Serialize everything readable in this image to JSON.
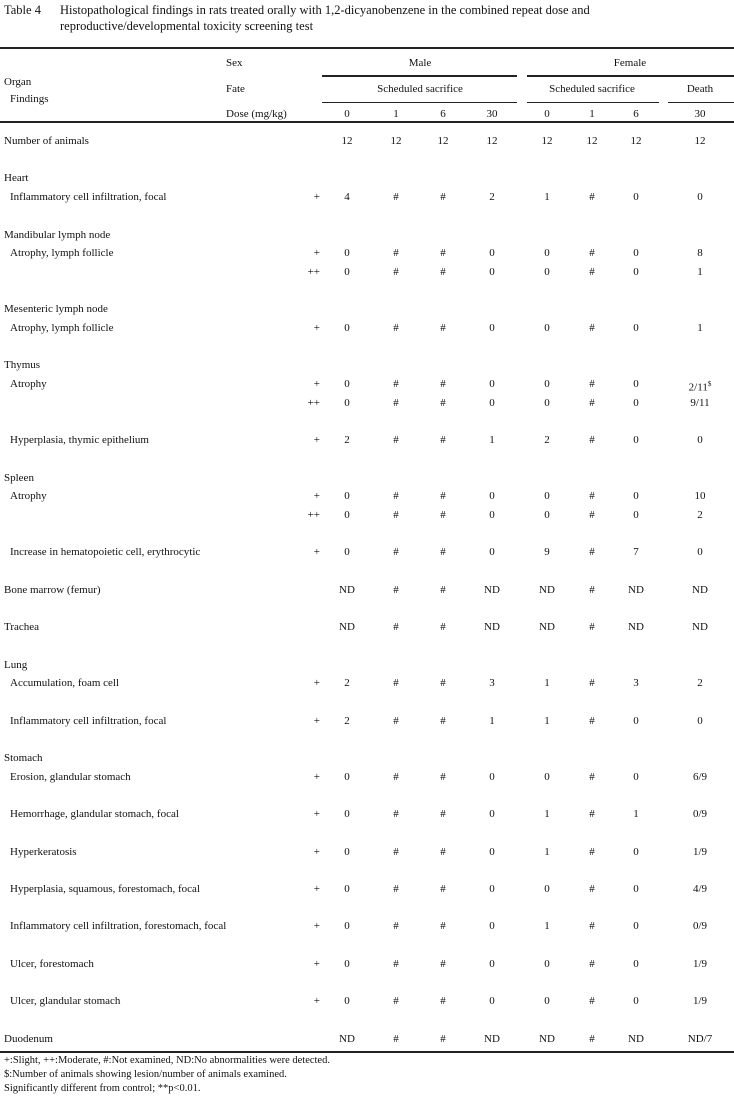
{
  "title": {
    "label": "Table 4",
    "text_line1": "Histopathological findings in rats treated orally with 1,2-dicyanobenzene in the combined repeat dose and",
    "text_line2": "reproductive/developmental toxicity screening test"
  },
  "header": {
    "organ": "Organ",
    "findings": "Findings",
    "sex_label": "Sex",
    "fate_label": "Fate",
    "dose_label": "Dose (mg/kg)",
    "male": "Male",
    "female": "Female",
    "male_fate": "Scheduled sacrifice",
    "female_fate": "Scheduled sacrifice",
    "female_death": "Death",
    "doses": [
      "0",
      "1",
      "6",
      "30",
      "0",
      "1",
      "6",
      "30"
    ]
  },
  "number_of_animals": {
    "label": "Number of animals",
    "values": [
      "12",
      "12",
      "12",
      "12",
      "12",
      "12",
      "12",
      "12"
    ]
  },
  "organs": [
    {
      "name": "Heart",
      "findings": [
        {
          "name": "Inflammatory cell infiltration, focal",
          "grades": [
            {
              "grade": "+",
              "values": [
                "4",
                "#",
                "#",
                "2",
                "1",
                "#",
                "0",
                "0"
              ]
            }
          ]
        }
      ]
    },
    {
      "name": "Mandibular lymph node",
      "findings": [
        {
          "name": "Atrophy, lymph follicle",
          "grades": [
            {
              "grade": "+",
              "values": [
                "0",
                "#",
                "#",
                "0",
                "0",
                "#",
                "0",
                "8"
              ]
            },
            {
              "grade": "++",
              "values": [
                "0",
                "#",
                "#",
                "0",
                "0",
                "#",
                "0",
                "1"
              ]
            }
          ]
        }
      ]
    },
    {
      "name": "Mesenteric lymph node",
      "findings": [
        {
          "name": "Atrophy, lymph follicle",
          "grades": [
            {
              "grade": "+",
              "values": [
                "0",
                "#",
                "#",
                "0",
                "0",
                "#",
                "0",
                "1"
              ]
            }
          ]
        }
      ]
    },
    {
      "name": "Thymus",
      "findings": [
        {
          "name": "Atrophy",
          "grades": [
            {
              "grade": "+",
              "values": [
                "0",
                "#",
                "#",
                "0",
                "0",
                "#",
                "0",
                "2/11"
              ],
              "last_sup": "$"
            },
            {
              "grade": "++",
              "values": [
                "0",
                "#",
                "#",
                "0",
                "0",
                "#",
                "0",
                "9/11"
              ]
            }
          ]
        },
        {
          "name": "Hyperplasia, thymic epithelium",
          "grades": [
            {
              "grade": "+",
              "values": [
                "2",
                "#",
                "#",
                "1",
                "2",
                "#",
                "0",
                "0"
              ]
            }
          ]
        }
      ]
    },
    {
      "name": "Spleen",
      "findings": [
        {
          "name": "Atrophy",
          "grades": [
            {
              "grade": "+",
              "values": [
                "0",
                "#",
                "#",
                "0",
                "0",
                "#",
                "0",
                "10"
              ]
            },
            {
              "grade": "++",
              "values": [
                "0",
                "#",
                "#",
                "0",
                "0",
                "#",
                "0",
                "2"
              ]
            }
          ]
        },
        {
          "name": "Increase in hematopoietic cell, erythrocytic",
          "grades": [
            {
              "grade": "+",
              "values": [
                "0",
                "#",
                "#",
                "0",
                "9",
                "#",
                "7",
                "0"
              ]
            }
          ]
        }
      ]
    },
    {
      "name": "Bone marrow (femur)",
      "values": [
        "ND",
        "#",
        "#",
        "ND",
        "ND",
        "#",
        "ND",
        "ND"
      ]
    },
    {
      "name": "Trachea",
      "values": [
        "ND",
        "#",
        "#",
        "ND",
        "ND",
        "#",
        "ND",
        "ND"
      ]
    },
    {
      "name": "Lung",
      "findings": [
        {
          "name": "Accumulation, foam cell",
          "grades": [
            {
              "grade": "+",
              "values": [
                "2",
                "#",
                "#",
                "3",
                "1",
                "#",
                "3",
                "2"
              ]
            }
          ]
        },
        {
          "name": "Inflammatory cell infiltration, focal",
          "grades": [
            {
              "grade": "+",
              "values": [
                "2",
                "#",
                "#",
                "1",
                "1",
                "#",
                "0",
                "0"
              ]
            }
          ]
        }
      ]
    },
    {
      "name": "Stomach",
      "findings": [
        {
          "name": "Erosion, glandular stomach",
          "grades": [
            {
              "grade": "+",
              "values": [
                "0",
                "#",
                "#",
                "0",
                "0",
                "#",
                "0",
                "6/9"
              ]
            }
          ]
        },
        {
          "name": "Hemorrhage, glandular stomach, focal",
          "grades": [
            {
              "grade": "+",
              "values": [
                "0",
                "#",
                "#",
                "0",
                "1",
                "#",
                "1",
                "0/9"
              ]
            }
          ]
        },
        {
          "name": "Hyperkeratosis",
          "grades": [
            {
              "grade": "+",
              "values": [
                "0",
                "#",
                "#",
                "0",
                "1",
                "#",
                "0",
                "1/9"
              ]
            }
          ]
        },
        {
          "name": "Hyperplasia, squamous, forestomach, focal",
          "grades": [
            {
              "grade": "+",
              "values": [
                "0",
                "#",
                "#",
                "0",
                "0",
                "#",
                "0",
                "4/9"
              ]
            }
          ]
        },
        {
          "name": "Inflammatory cell infiltration, forestomach, focal",
          "grades": [
            {
              "grade": "+",
              "values": [
                "0",
                "#",
                "#",
                "0",
                "1",
                "#",
                "0",
                "0/9"
              ]
            }
          ]
        },
        {
          "name": "Ulcer, forestomach",
          "grades": [
            {
              "grade": "+",
              "values": [
                "0",
                "#",
                "#",
                "0",
                "0",
                "#",
                "0",
                "1/9"
              ]
            }
          ]
        },
        {
          "name": "Ulcer, glandular stomach",
          "grades": [
            {
              "grade": "+",
              "values": [
                "0",
                "#",
                "#",
                "0",
                "0",
                "#",
                "0",
                "1/9"
              ]
            }
          ]
        }
      ]
    },
    {
      "name": "Duodenum",
      "values": [
        "ND",
        "#",
        "#",
        "ND",
        "ND",
        "#",
        "ND",
        "ND/7"
      ]
    }
  ],
  "footnotes": [
    "+:Slight,  ++:Moderate,  #:Not examined,  ND:No abnormalities were detected.",
    "$:Number of animals showing lesion/number of animals examined.",
    "Significantly different from control; **p<0.01."
  ]
}
